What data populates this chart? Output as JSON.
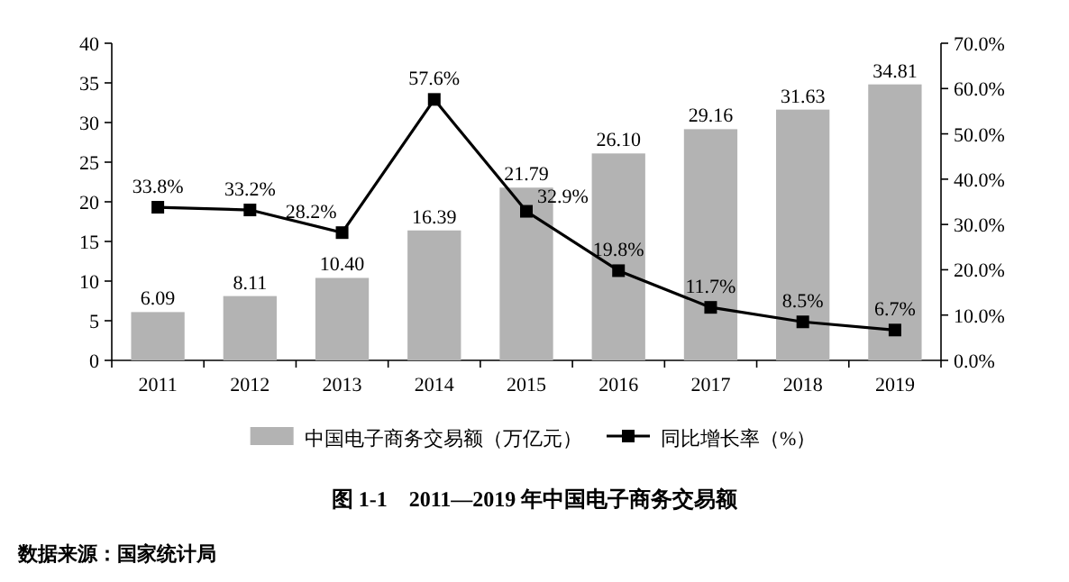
{
  "chart_data": {
    "type": "bar",
    "title": "图 1-1　2011—2019 年中国电子商务交易额",
    "annotations": [
      "数据来源：国家统计局"
    ],
    "categories": [
      "2011",
      "2012",
      "2013",
      "2014",
      "2015",
      "2016",
      "2017",
      "2018",
      "2019"
    ],
    "series": [
      {
        "name": "中国电子商务交易额（万亿元）",
        "color": "#b3b3b3",
        "values": [
          6.09,
          8.11,
          10.4,
          16.39,
          21.79,
          26.1,
          29.16,
          31.63,
          34.81
        ],
        "value_labels": [
          "6.09",
          "8.11",
          "10.40",
          "16.39",
          "21.79",
          "26.10",
          "29.16",
          "31.63",
          "34.81"
        ]
      },
      {
        "name": "同比增长率（%）",
        "type": "line",
        "axis": "y2",
        "color": "#000000",
        "values": [
          33.8,
          33.2,
          28.2,
          57.6,
          32.9,
          19.8,
          11.7,
          8.5,
          6.7
        ],
        "value_labels": [
          "33.8%",
          "33.2%",
          "28.2%",
          "57.6%",
          "32.9%",
          "19.8%",
          "11.7%",
          "8.5%",
          "6.7%"
        ]
      }
    ],
    "marker": "square",
    "legend": "bottom",
    "ylim": [
      0,
      40
    ],
    "yticks": [
      0,
      5,
      10,
      15,
      20,
      25,
      30,
      35,
      40
    ],
    "y2lim": [
      0,
      70
    ],
    "y2ticks": [
      {
        "value": 0,
        "label": "0.0%"
      },
      {
        "value": 10,
        "label": "10.0%"
      },
      {
        "value": 20,
        "label": "20.0%"
      },
      {
        "value": 30,
        "label": "30.0%"
      },
      {
        "value": 40,
        "label": "40.0%"
      },
      {
        "value": 50,
        "label": "50.0%"
      },
      {
        "value": 60,
        "label": "60.0%"
      },
      {
        "value": 70,
        "label": "70.0%"
      }
    ]
  }
}
